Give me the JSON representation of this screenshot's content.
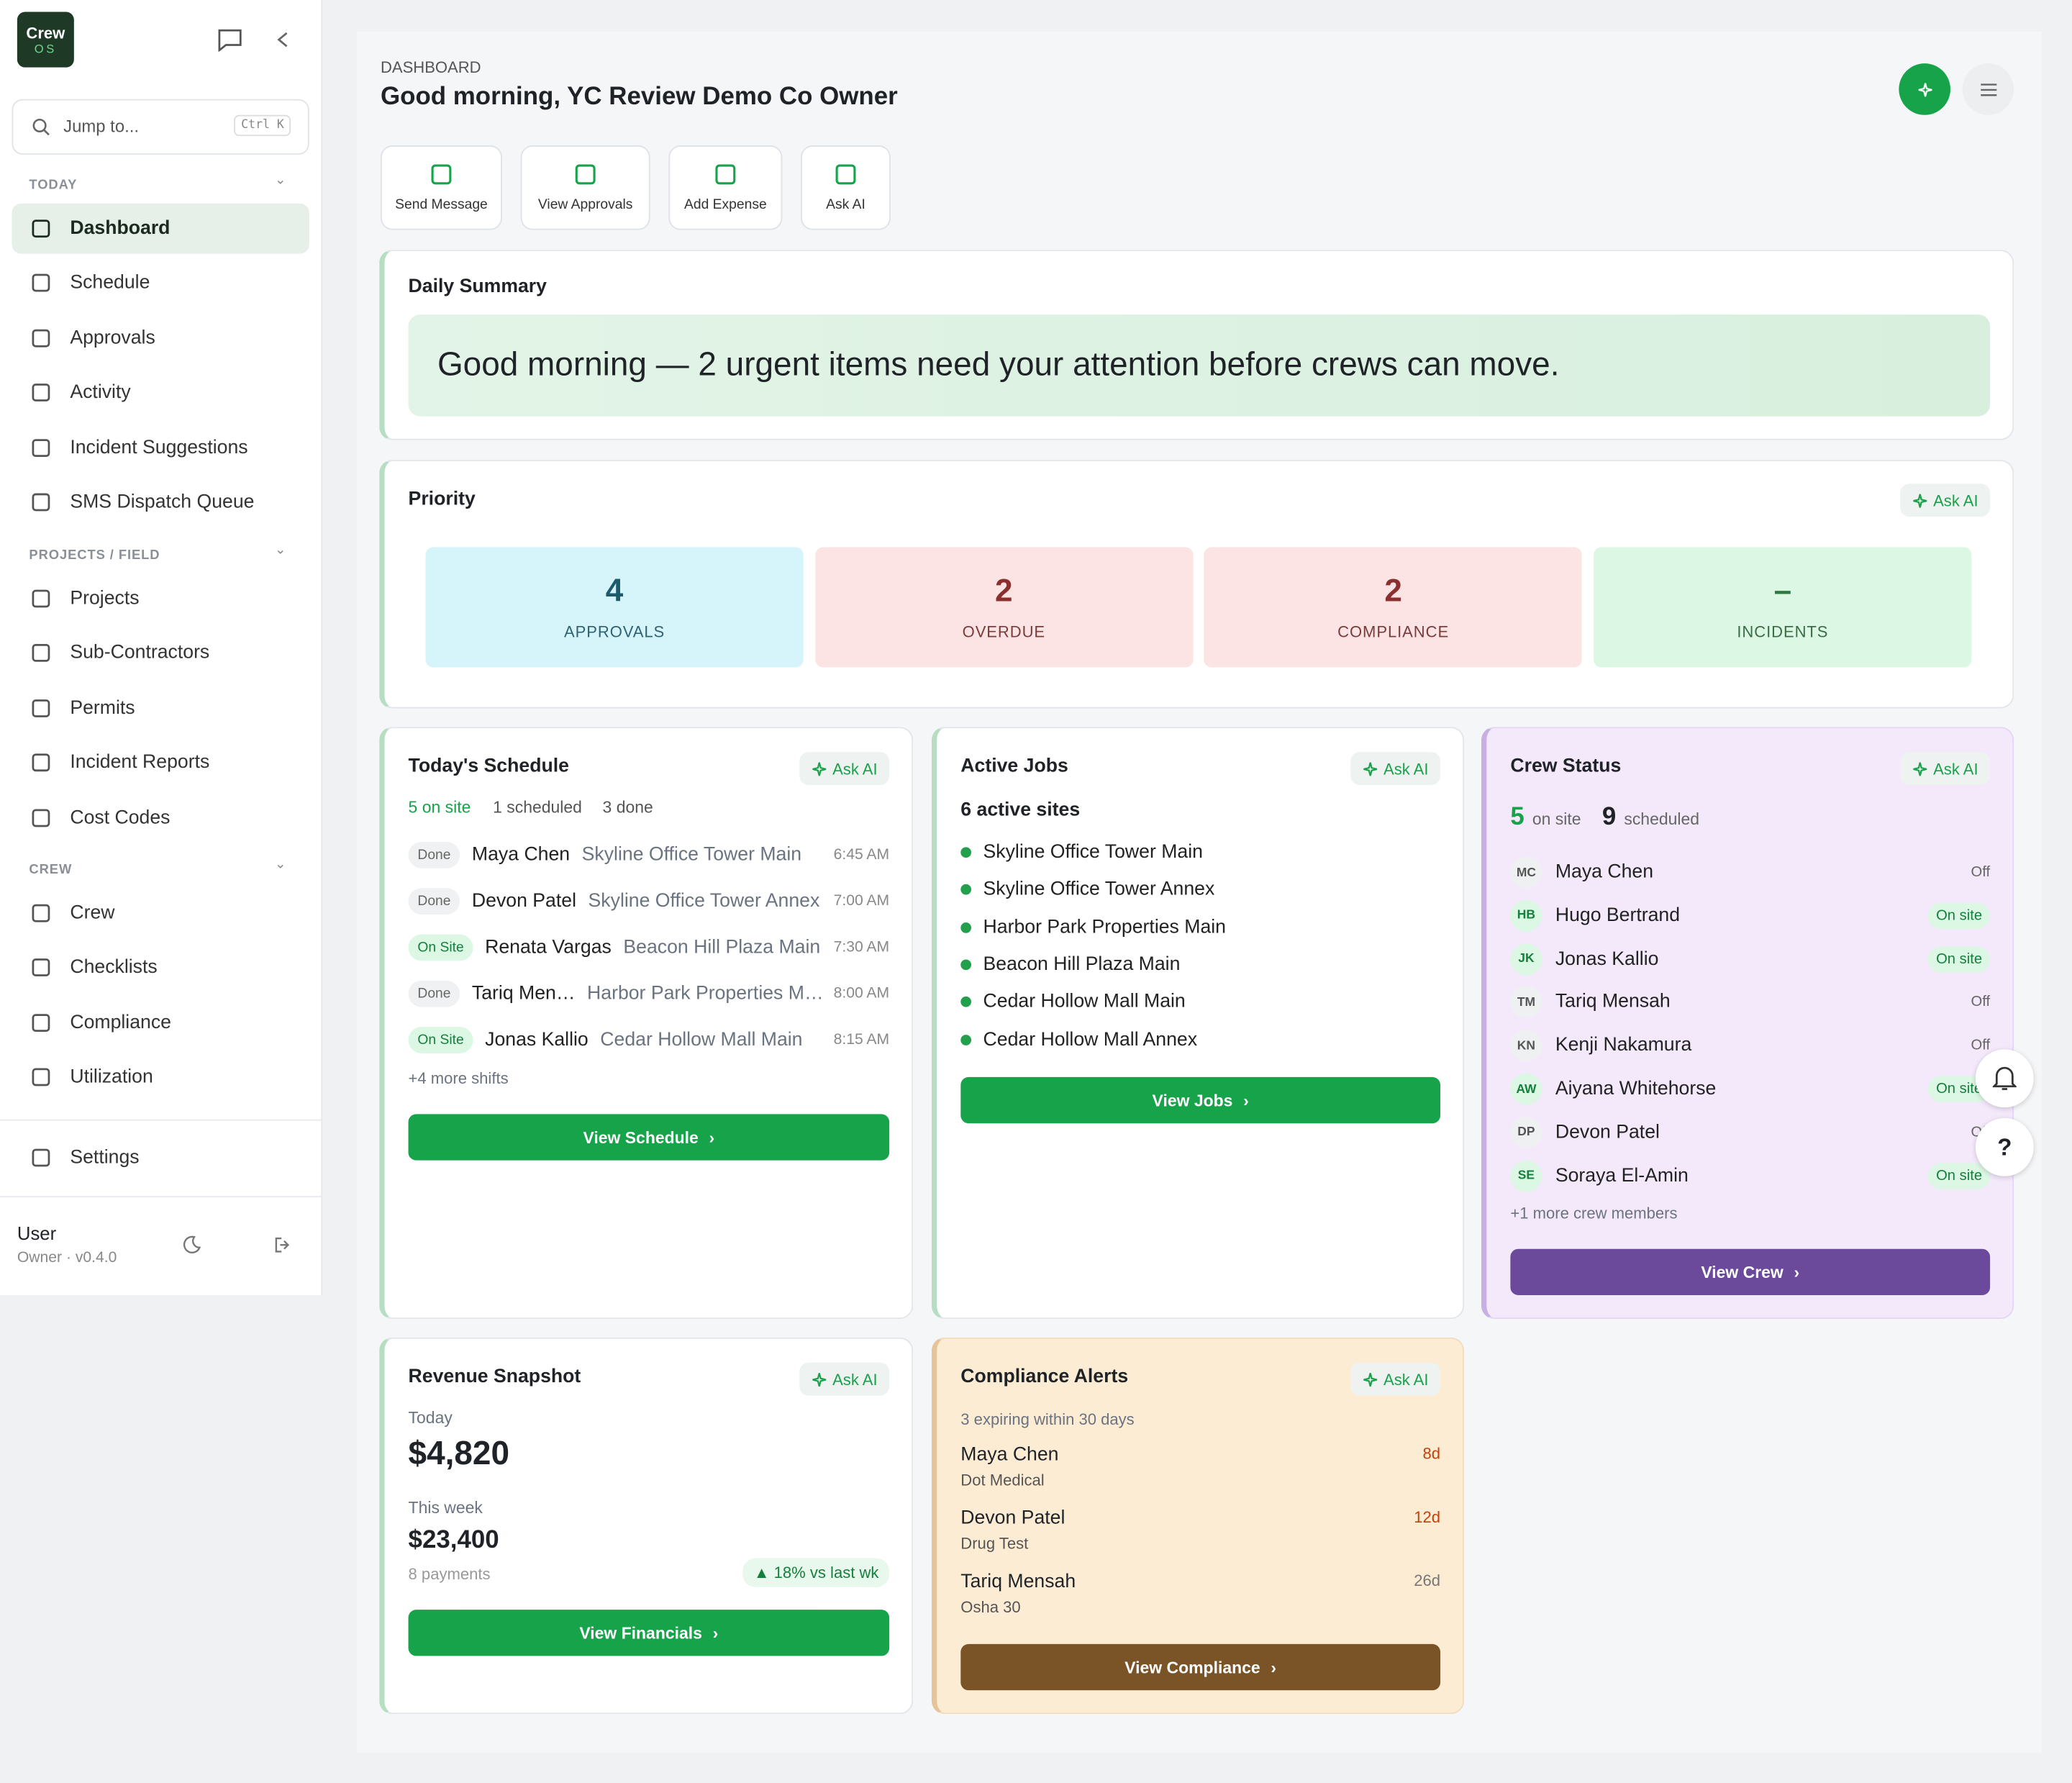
{
  "sidebar": {
    "logo": [
      "Crew",
      "OS"
    ],
    "search": {
      "placeholder": "Jump to...",
      "shortcut": "Ctrl K"
    },
    "sections": [
      {
        "title": "TODAY",
        "items": [
          "Dashboard",
          "Schedule",
          "Approvals",
          "Activity",
          "Incident Suggestions",
          "SMS Dispatch Queue"
        ]
      },
      {
        "title": "PROJECTS / FIELD",
        "items": [
          "Projects",
          "Sub-Contractors",
          "Permits",
          "Incident Reports",
          "Cost Codes"
        ]
      },
      {
        "title": "CREW",
        "items": [
          "Crew",
          "Checklists",
          "Compliance",
          "Utilization"
        ]
      }
    ],
    "settings": "Settings",
    "user": {
      "name": "User",
      "role": "Owner · v0.4.0"
    }
  },
  "header": {
    "eyebrow": "DASHBOARD",
    "title": "Good morning, YC Review Demo Co Owner"
  },
  "quick_actions": [
    "Send Message",
    "View Approvals",
    "Add Expense",
    "Ask AI"
  ],
  "daily_summary": {
    "title": "Daily Summary",
    "message": "Good morning — 2 urgent items need your attention before crews can move."
  },
  "priority": {
    "title": "Priority",
    "ask": "Ask AI",
    "tiles": [
      {
        "value": 4,
        "label": "APPROVALS"
      },
      {
        "value": 2,
        "label": "OVERDUE"
      },
      {
        "value": 2,
        "label": "COMPLIANCE"
      },
      {
        "value": "–",
        "label": "INCIDENTS"
      }
    ]
  },
  "schedule": {
    "title": "Today's Schedule",
    "ask": "Ask AI",
    "stats": [
      "5 on site",
      "1 scheduled",
      "3 done"
    ],
    "rows": [
      {
        "status": "Done",
        "name": "Maya Chen",
        "site": "Skyline Office Tower Main",
        "time": "6:45 AM"
      },
      {
        "status": "Done",
        "name": "Devon Patel",
        "site": "Skyline Office Tower Annex",
        "time": "7:00 AM"
      },
      {
        "status": "On Site",
        "name": "Renata Vargas",
        "site": "Beacon Hill Plaza Main",
        "time": "7:30 AM"
      },
      {
        "status": "Done",
        "name": "Tariq Men…",
        "site": "Harbor Park Properties M…",
        "time": "8:00 AM"
      },
      {
        "status": "On Site",
        "name": "Jonas Kallio",
        "site": "Cedar Hollow Mall Main",
        "time": "8:15 AM"
      }
    ],
    "more": "+4 more shifts",
    "button": "View Schedule"
  },
  "jobs": {
    "title": "Active Jobs",
    "ask": "Ask AI",
    "subtitle": "6 active sites",
    "sites": [
      "Skyline Office Tower Main",
      "Skyline Office Tower Annex",
      "Harbor Park Properties Main",
      "Beacon Hill Plaza Main",
      "Cedar Hollow Mall Main",
      "Cedar Hollow Mall Annex"
    ],
    "button": "View Jobs"
  },
  "crew": {
    "title": "Crew Status",
    "ask": "Ask AI",
    "on_site": 5,
    "on_site_label": "on site",
    "scheduled": 9,
    "scheduled_label": "scheduled",
    "members": [
      {
        "initials": "MC",
        "name": "Maya Chen",
        "status": "Off"
      },
      {
        "initials": "HB",
        "name": "Hugo Bertrand",
        "status": "On site"
      },
      {
        "initials": "JK",
        "name": "Jonas Kallio",
        "status": "On site"
      },
      {
        "initials": "TM",
        "name": "Tariq Mensah",
        "status": "Off"
      },
      {
        "initials": "KN",
        "name": "Kenji Nakamura",
        "status": "Off"
      },
      {
        "initials": "AW",
        "name": "Aiyana Whitehorse",
        "status": "On site"
      },
      {
        "initials": "DP",
        "name": "Devon Patel",
        "status": "Off"
      },
      {
        "initials": "SE",
        "name": "Soraya El-Amin",
        "status": "On site"
      }
    ],
    "more": "+1 more crew members",
    "button": "View Crew"
  },
  "revenue": {
    "title": "Revenue Snapshot",
    "ask": "Ask AI",
    "today_label": "Today",
    "today": "$4,820",
    "week_label": "This week",
    "week": "$23,400",
    "payments": "8 payments",
    "change": "▲ 18% vs last wk",
    "button": "View Financials"
  },
  "compliance": {
    "title": "Compliance Alerts",
    "ask": "Ask AI",
    "subtitle": "3 expiring within 30 days",
    "items": [
      {
        "name": "Maya Chen",
        "doc": "Dot Medical",
        "days": "8d"
      },
      {
        "name": "Devon Patel",
        "doc": "Drug Test",
        "days": "12d"
      },
      {
        "name": "Tariq Mensah",
        "doc": "Osha 30",
        "days": "26d"
      }
    ],
    "button": "View Compliance"
  }
}
